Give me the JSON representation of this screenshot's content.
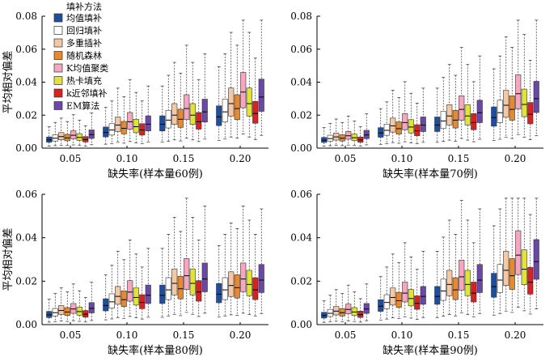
{
  "legend": {
    "title": "填补方法",
    "entries": [
      {
        "name": "均值填补",
        "color": "#1f4e9c"
      },
      {
        "name": "回归填补",
        "color": "#ffffff"
      },
      {
        "name": "多重插补",
        "color": "#f4c7a5"
      },
      {
        "name": "随机森林",
        "color": "#e8892d"
      },
      {
        "name": "K均值聚类",
        "color": "#f4a7bf"
      },
      {
        "name": "热卡填充",
        "color": "#e2e23c"
      },
      {
        "name": "k近邻填补",
        "color": "#dc2020"
      },
      {
        "name": "EM算法",
        "color": "#6a47a8"
      }
    ]
  },
  "chart_data": [
    {
      "type": "boxplot",
      "xlabel": "缺失率(样本量60例)",
      "ylabel": "平均相对偏差",
      "categories": [
        "0.05",
        "0.10",
        "0.15",
        "0.20"
      ],
      "yticks": [
        "0.00",
        "0.02",
        "0.04",
        "0.06",
        "0.08"
      ],
      "ylim": [
        0,
        0.08
      ],
      "medians": [
        [
          0.005,
          0.006,
          0.007,
          0.0062,
          0.0078,
          0.0065,
          0.0052,
          0.0082
        ],
        [
          0.0095,
          0.011,
          0.014,
          0.012,
          0.016,
          0.013,
          0.011,
          0.0145
        ],
        [
          0.0145,
          0.017,
          0.02,
          0.0175,
          0.024,
          0.02,
          0.016,
          0.022
        ],
        [
          0.019,
          0.022,
          0.027,
          0.024,
          0.034,
          0.027,
          0.021,
          0.031
        ]
      ]
    },
    {
      "type": "boxplot",
      "xlabel": "缺失率(样本量70例)",
      "ylabel": "",
      "categories": [
        "0.05",
        "0.10",
        "0.15",
        "0.20"
      ],
      "yticks": [
        "0.00",
        "0.02",
        "0.04",
        "0.06",
        "0.08"
      ],
      "ylim": [
        0,
        0.08
      ],
      "medians": [
        [
          0.0048,
          0.0058,
          0.0068,
          0.006,
          0.0075,
          0.0063,
          0.005,
          0.008
        ],
        [
          0.0092,
          0.0108,
          0.0135,
          0.0118,
          0.0155,
          0.0128,
          0.0105,
          0.014
        ],
        [
          0.014,
          0.0165,
          0.0195,
          0.017,
          0.0235,
          0.0195,
          0.0155,
          0.0215
        ],
        [
          0.0185,
          0.0215,
          0.026,
          0.0235,
          0.033,
          0.0265,
          0.0205,
          0.03
        ]
      ]
    },
    {
      "type": "boxplot",
      "xlabel": "缺失率(样本量80例)",
      "ylabel": "平均相对偏差",
      "categories": [
        "0.05",
        "0.10",
        "0.15",
        "0.20"
      ],
      "yticks": [
        "0.00",
        "0.02",
        "0.04",
        "0.06"
      ],
      "ylim": [
        0,
        0.06
      ],
      "medians": [
        [
          0.0045,
          0.0055,
          0.0065,
          0.0058,
          0.0072,
          0.006,
          0.0048,
          0.0075
        ],
        [
          0.0088,
          0.0105,
          0.013,
          0.0115,
          0.015,
          0.0125,
          0.0102,
          0.0135
        ],
        [
          0.0135,
          0.016,
          0.019,
          0.0165,
          0.0225,
          0.019,
          0.015,
          0.021
        ],
        [
          0.014,
          0.016,
          0.018,
          0.017,
          0.021,
          0.0185,
          0.016,
          0.0205
        ]
      ]
    },
    {
      "type": "boxplot",
      "xlabel": "缺失率(样本量90例)",
      "ylabel": "",
      "categories": [
        "0.05",
        "0.10",
        "0.15",
        "0.20"
      ],
      "yticks": [
        "0.00",
        "0.02",
        "0.04",
        "0.06"
      ],
      "ylim": [
        0,
        0.06
      ],
      "medians": [
        [
          0.0042,
          0.0052,
          0.0062,
          0.0055,
          0.007,
          0.0058,
          0.0046,
          0.0072
        ],
        [
          0.0085,
          0.0102,
          0.0125,
          0.011,
          0.0145,
          0.012,
          0.0098,
          0.013
        ],
        [
          0.013,
          0.0155,
          0.0185,
          0.016,
          0.022,
          0.0185,
          0.0145,
          0.0205
        ],
        [
          0.0175,
          0.0205,
          0.025,
          0.0225,
          0.032,
          0.0255,
          0.0195,
          0.029
        ]
      ]
    }
  ]
}
